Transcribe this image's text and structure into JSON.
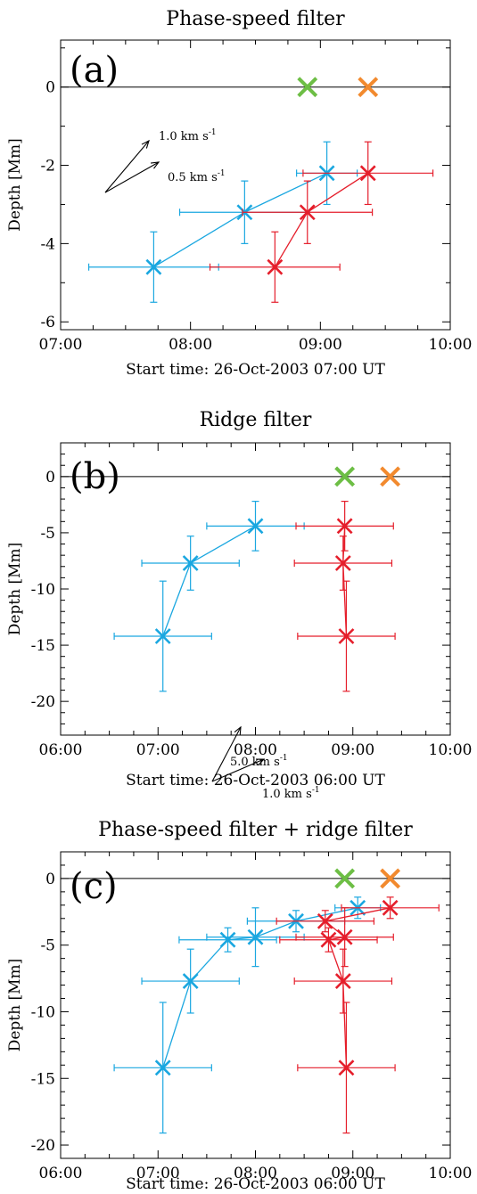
{
  "colors": {
    "blue": "#1AA7E0",
    "red": "#E51E2B",
    "green": "#6DBE45",
    "orange": "#F28A2E"
  },
  "chart_data": [
    {
      "type": "scatter",
      "panel": "(a)",
      "title": "Phase-speed filter",
      "xlabel": "Start time: 26-Oct-2003 07:00 UT",
      "ylabel": "Depth [Mm]",
      "xlim": [
        0,
        180
      ],
      "ylim": [
        -6.2,
        1.2
      ],
      "xticks": [
        0,
        60,
        120,
        180
      ],
      "xticklabels": [
        "07:00",
        "08:00",
        "09:00",
        "10:00"
      ],
      "yticks": [
        -6,
        -4,
        -2,
        0
      ],
      "yticklabels": [
        "-6",
        "-4",
        "-2",
        "0"
      ],
      "zero_line": true,
      "series": [
        {
          "color": "blue",
          "x": [
            43,
            85,
            123
          ],
          "y": [
            -4.6,
            -3.2,
            -2.2
          ],
          "xerr": [
            30,
            30,
            14
          ],
          "yerr": [
            0.9,
            0.8,
            0.8
          ]
        },
        {
          "color": "red",
          "x": [
            99,
            114,
            142
          ],
          "y": [
            -4.6,
            -3.2,
            -2.2
          ],
          "xerr": [
            30,
            30,
            30
          ],
          "yerr": [
            0.9,
            0.8,
            0.8
          ]
        }
      ],
      "markers": [
        {
          "color": "green",
          "x": 114,
          "y": 0
        },
        {
          "color": "orange",
          "x": 142,
          "y": 0
        }
      ],
      "annotations": [
        {
          "text": "1.0 km s",
          "sup": "-1"
        },
        {
          "text": "0.5 km s",
          "sup": "-1"
        }
      ]
    },
    {
      "type": "scatter",
      "panel": "(b)",
      "title": "Ridge filter",
      "xlabel": "Start time: 26-Oct-2003 06:00 UT",
      "ylabel": "Depth [Mm]",
      "xlim": [
        0,
        240
      ],
      "ylim": [
        -23,
        3
      ],
      "xticks": [
        0,
        60,
        120,
        180,
        240
      ],
      "xticklabels": [
        "06:00",
        "07:00",
        "08:00",
        "09:00",
        "10:00"
      ],
      "yticks": [
        -20,
        -15,
        -10,
        -5,
        0
      ],
      "yticklabels": [
        "-20",
        "-15",
        "-10",
        "-5",
        "0"
      ],
      "zero_line": true,
      "series": [
        {
          "color": "blue",
          "x": [
            63,
            80,
            120
          ],
          "y": [
            -14.2,
            -7.7,
            -4.4
          ],
          "xerr": [
            30,
            30,
            30
          ],
          "yerr": [
            4.9,
            2.4,
            2.2
          ]
        },
        {
          "color": "red",
          "x": [
            176,
            174,
            175
          ],
          "y": [
            -14.2,
            -7.7,
            -4.4
          ],
          "xerr": [
            30,
            30,
            30
          ],
          "yerr": [
            4.9,
            2.4,
            2.2
          ]
        }
      ],
      "markers": [
        {
          "color": "green",
          "x": 175,
          "y": 0
        },
        {
          "color": "orange",
          "x": 203,
          "y": 0
        }
      ],
      "annotations": [
        {
          "text": "5.0 km s",
          "sup": "-1"
        },
        {
          "text": "1.0 km s",
          "sup": "-1"
        }
      ]
    },
    {
      "type": "scatter",
      "panel": "(c)",
      "title": "Phase-speed filter + ridge filter",
      "xlabel": "Start time: 26-Oct-2003 06:00 UT",
      "ylabel": "Depth [Mm]",
      "xlim": [
        0,
        240
      ],
      "ylim": [
        -21,
        2
      ],
      "xticks": [
        0,
        60,
        120,
        180,
        240
      ],
      "xticklabels": [
        "06:00",
        "07:00",
        "08:00",
        "09:00",
        "10:00"
      ],
      "yticks": [
        -20,
        -15,
        -10,
        -5,
        0
      ],
      "yticklabels": [
        "-20",
        "-15",
        "-10",
        "-5",
        "0"
      ],
      "zero_line": true,
      "series": [
        {
          "color": "blue",
          "x": [
            63,
            80,
            103,
            120,
            145,
            183
          ],
          "y": [
            -14.2,
            -7.7,
            -4.6,
            -4.4,
            -3.2,
            -2.2
          ],
          "xerr": [
            30,
            30,
            30,
            30,
            30,
            14
          ],
          "yerr": [
            4.9,
            2.4,
            0.9,
            2.2,
            0.8,
            0.8
          ]
        },
        {
          "color": "red",
          "x": [
            176,
            174,
            165,
            175,
            163,
            203
          ],
          "y": [
            -14.2,
            -7.7,
            -4.6,
            -4.4,
            -3.2,
            -2.2
          ],
          "xerr": [
            30,
            30,
            30,
            30,
            30,
            30
          ],
          "yerr": [
            4.9,
            2.4,
            0.9,
            2.2,
            0.8,
            0.8
          ]
        }
      ],
      "markers": [
        {
          "color": "green",
          "x": 175,
          "y": 0
        },
        {
          "color": "orange",
          "x": 203,
          "y": 0
        }
      ],
      "annotations": []
    }
  ]
}
